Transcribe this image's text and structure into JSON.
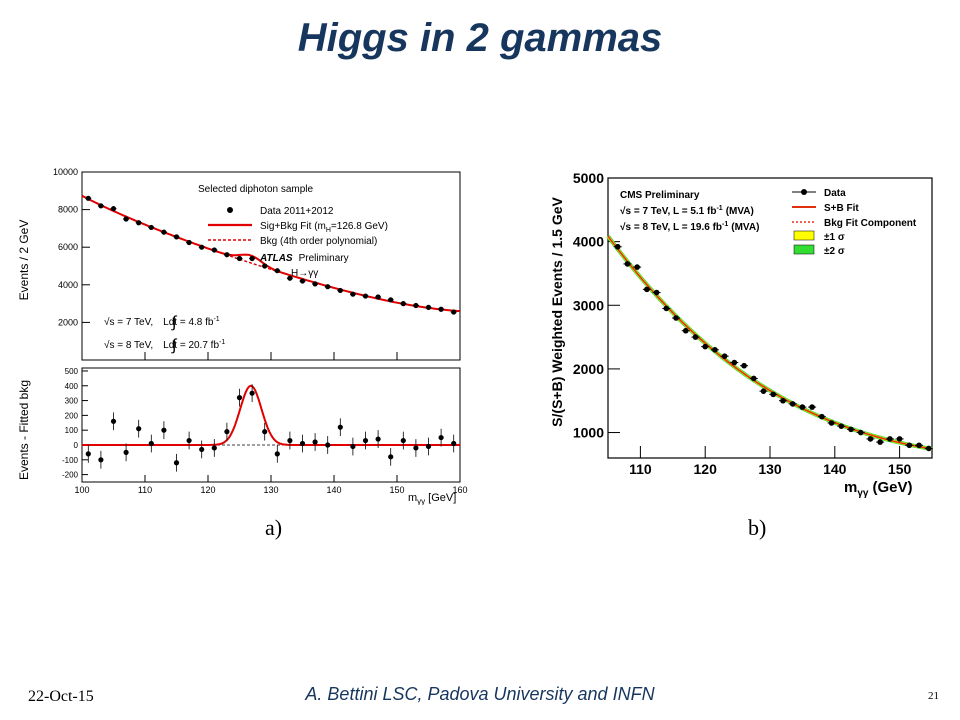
{
  "slide": {
    "title": "Higgs in 2 gammas",
    "footer_date": "22-Oct-15",
    "footer_author": "A. Bettini LSC, Padova University and INFN",
    "page_number": "21",
    "caption_a": "a)",
    "caption_b": "b)",
    "title_color": "#17365d"
  },
  "chart_data": [
    {
      "type": "scatter",
      "panel": "atlas-top",
      "ylabel": "Events / 2 GeV",
      "xlim": [
        100,
        160
      ],
      "ylim": [
        0,
        10000
      ],
      "yticks": [
        2000,
        4000,
        6000,
        8000,
        10000
      ],
      "legend": {
        "header": "Selected diphoton sample",
        "entries": [
          "Data 2011+2012",
          "Sig+Bkg Fit (m",
          "=126.8 GeV)",
          "Bkg (4th order polynomial)"
        ],
        "sub_H": "H"
      },
      "experiment": "ATLAS",
      "status": "Preliminary",
      "channel": "H→γγ",
      "lumi_7": {
        "energy": "√s = 7 TeV,",
        "integral": "Ldt = 4.8 fb",
        "sup": "-1"
      },
      "lumi_8": {
        "energy": "√s = 8 TeV,",
        "integral": "Ldt = 20.7 fb",
        "sup": "-1"
      },
      "series": [
        {
          "x": [
            101,
            103,
            105,
            107,
            109,
            111,
            113,
            115,
            117,
            119,
            121,
            123,
            125,
            127,
            129,
            131,
            133,
            135,
            137,
            139,
            141,
            143,
            145,
            147,
            149,
            151,
            153,
            155,
            157,
            159
          ],
          "y": [
            8600,
            8200,
            8050,
            7500,
            7300,
            7050,
            6800,
            6550,
            6250,
            6000,
            5850,
            5600,
            5400,
            5400,
            5000,
            4750,
            4350,
            4200,
            4050,
            3900,
            3700,
            3500,
            3400,
            3350,
            3200,
            3000,
            2900,
            2800,
            2700,
            2550
          ]
        }
      ]
    },
    {
      "type": "scatter",
      "panel": "atlas-bottom",
      "ylabel": "Events - Fitted bkg",
      "xlabel": "m",
      "xlabel_sub": "γγ",
      "xlabel_unit": "[GeV]",
      "xlim": [
        100,
        160
      ],
      "ylim": [
        -250,
        520
      ],
      "xticks": [
        100,
        110,
        120,
        130,
        140,
        150,
        160
      ],
      "yticks": [
        -200,
        -100,
        0,
        100,
        200,
        300,
        400,
        500
      ],
      "signal": {
        "mass": 126.8,
        "amplitude": 400,
        "width": 1.7
      },
      "series": [
        {
          "x": [
            101,
            103,
            105,
            107,
            109,
            111,
            113,
            115,
            117,
            119,
            121,
            123,
            125,
            127,
            129,
            131,
            133,
            135,
            137,
            139,
            141,
            143,
            145,
            147,
            149,
            151,
            153,
            155,
            157,
            159
          ],
          "y": [
            -60,
            -100,
            160,
            -50,
            110,
            10,
            100,
            -120,
            30,
            -30,
            -20,
            90,
            320,
            350,
            90,
            -60,
            30,
            10,
            20,
            0,
            120,
            -10,
            30,
            40,
            -80,
            30,
            -20,
            -10,
            50,
            10
          ]
        }
      ]
    },
    {
      "type": "scatter",
      "panel": "cms",
      "ylabel": "S/(S+B) Weighted Events / 1.5 GeV",
      "xlabel": "m",
      "xlabel_sub": "γγ",
      "xlabel_unit": "(GeV)",
      "xlim": [
        105,
        155
      ],
      "ylim": [
        600,
        5000
      ],
      "xticks": [
        110,
        120,
        130,
        140,
        150
      ],
      "yticks": [
        1000,
        2000,
        3000,
        4000,
        5000
      ],
      "status": "CMS Preliminary",
      "lumi_7": "√s = 7 TeV, L = 5.1 fb",
      "lumi_7_unit": "(MVA)",
      "lumi_8": "√s = 8 TeV, L = 19.6 fb",
      "lumi_8_unit": "(MVA)",
      "lumi_sup": "-1",
      "legend": {
        "entries": [
          "Data",
          "S+B Fit",
          "Bkg Fit Component",
          "±1 σ",
          "±2 σ"
        ],
        "band_colors": [
          "#ffff00",
          "#33dd33"
        ]
      },
      "series": [
        {
          "x": [
            106.5,
            108,
            109.5,
            111,
            112.5,
            114,
            115.5,
            117,
            118.5,
            120,
            121.5,
            123,
            124.5,
            126,
            127.5,
            129,
            130.5,
            132,
            133.5,
            135,
            136.5,
            138,
            139.5,
            141,
            142.5,
            144,
            145.5,
            147,
            148.5,
            150,
            151.5,
            153,
            154.5
          ],
          "y": [
            3920,
            3650,
            3600,
            3250,
            3200,
            2950,
            2800,
            2600,
            2500,
            2350,
            2300,
            2200,
            2100,
            2050,
            1850,
            1650,
            1600,
            1500,
            1450,
            1400,
            1400,
            1250,
            1150,
            1100,
            1050,
            1000,
            900,
            850,
            900,
            900,
            800,
            800,
            750
          ]
        }
      ],
      "fit_color": "#e03010",
      "bkg_color": "#e03010"
    }
  ]
}
